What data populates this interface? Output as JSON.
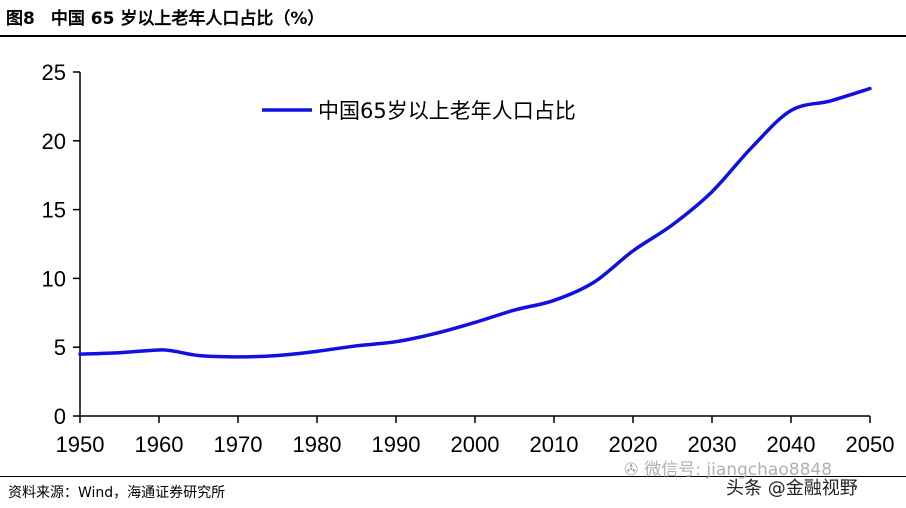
{
  "figure": {
    "number": "图8",
    "title": "中国 65 岁以上老年人口占比（%）",
    "source": "资料来源：Wind，海通证券研究所"
  },
  "watermarks": {
    "wechat_text": "微信号: jiangchao8848",
    "toutiao_text": "头条 @金融视野"
  },
  "colors": {
    "series_line": "#1010e0",
    "axis": "#000000"
  },
  "chart_data": {
    "type": "line",
    "xlim": [
      1950,
      2050
    ],
    "ylim": [
      0,
      25
    ],
    "xticks": [
      1950,
      1960,
      1970,
      1980,
      1990,
      2000,
      2010,
      2020,
      2030,
      2040,
      2050
    ],
    "yticks": [
      0,
      5,
      10,
      15,
      20,
      25
    ],
    "grid": false,
    "legend_position": "top-left",
    "series": [
      {
        "name": "中国65岁以上老年人口占比",
        "x": [
          1950,
          1955,
          1960,
          1962,
          1965,
          1970,
          1975,
          1980,
          1985,
          1990,
          1995,
          2000,
          2005,
          2010,
          2015,
          2020,
          2025,
          2030,
          2035,
          2040,
          2045,
          2050
        ],
        "y": [
          4.5,
          4.6,
          4.8,
          4.7,
          4.4,
          4.3,
          4.4,
          4.7,
          5.1,
          5.4,
          6.0,
          6.8,
          7.7,
          8.4,
          9.7,
          12.0,
          13.9,
          16.3,
          19.5,
          22.2,
          22.9,
          23.8
        ]
      }
    ]
  }
}
